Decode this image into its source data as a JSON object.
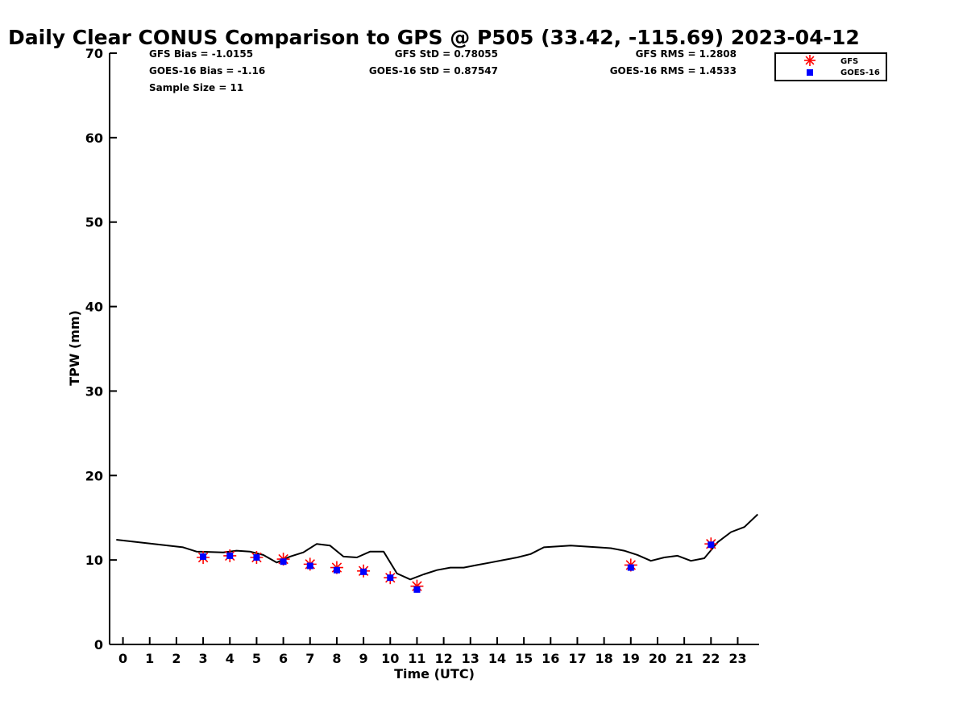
{
  "chart_data": {
    "type": "line",
    "title": "Daily Clear CONUS Comparison to GPS @ P505 (33.42, -115.69) 2023-04-12",
    "xlabel": "Time (UTC)",
    "ylabel": "TPW (mm)",
    "xlim": [
      -0.5,
      23.8
    ],
    "ylim": [
      0,
      70
    ],
    "x_ticks": [
      0,
      1,
      2,
      3,
      4,
      5,
      6,
      7,
      8,
      9,
      10,
      11,
      12,
      13,
      14,
      15,
      16,
      17,
      18,
      19,
      20,
      21,
      22,
      23
    ],
    "y_ticks": [
      0,
      10,
      20,
      30,
      40,
      50,
      60,
      70
    ],
    "grid": false,
    "legend_position": "top-right",
    "stats": {
      "gfs_bias": "GFS Bias = -1.0155",
      "goes_bias": "GOES-16 Bias = -1.16",
      "sample_size": "Sample Size = 11",
      "gfs_std": "GFS StD = 0.78055",
      "goes_std": "GOES-16 StD = 0.87547",
      "gfs_rms": "GFS RMS = 1.2808",
      "goes_rms": "GOES-16 RMS = 1.4533"
    },
    "series": [
      {
        "role": "gps",
        "style": "line",
        "color": "#000000",
        "x": [
          -0.25,
          2.25,
          2.75,
          3.75,
          4.25,
          4.75,
          5.25,
          5.75,
          6.25,
          6.75,
          7.25,
          7.75,
          8.25,
          8.75,
          9.25,
          9.75,
          10.25,
          10.75,
          11.25,
          11.75,
          12.25,
          12.75,
          13.25,
          13.75,
          14.25,
          14.75,
          15.25,
          15.75,
          16.75,
          17.75,
          18.25,
          18.75,
          19.25,
          19.75,
          20.25,
          20.75,
          21.25,
          21.75,
          22.25,
          22.75,
          23.25,
          23.75
        ],
        "y": [
          12.4,
          11.5,
          11.0,
          10.9,
          11.1,
          11.0,
          10.6,
          9.7,
          10.4,
          10.9,
          11.9,
          11.7,
          10.4,
          10.3,
          11.0,
          11.0,
          8.4,
          7.7,
          8.3,
          8.8,
          9.1,
          9.1,
          9.4,
          9.7,
          10.0,
          10.3,
          10.7,
          11.5,
          11.7,
          11.5,
          11.4,
          11.1,
          10.6,
          9.9,
          10.3,
          10.5,
          9.9,
          10.2,
          12.1,
          13.3,
          13.9,
          15.4
        ]
      },
      {
        "name": "GFS",
        "style": "star",
        "color": "#ff0000",
        "x": [
          3,
          4,
          5,
          6,
          7,
          8,
          9,
          10,
          11,
          19,
          22
        ],
        "y": [
          10.3,
          10.5,
          10.3,
          10.1,
          9.5,
          9.1,
          8.7,
          7.9,
          6.9,
          9.4,
          11.9
        ]
      },
      {
        "name": "GOES-16",
        "style": "square",
        "color": "#0000ff",
        "x": [
          3,
          4,
          5,
          6,
          7,
          8,
          9,
          10,
          11,
          19,
          22
        ],
        "y": [
          10.4,
          10.5,
          10.3,
          9.8,
          9.3,
          8.8,
          8.6,
          7.9,
          6.5,
          9.1,
          11.8
        ]
      }
    ]
  }
}
